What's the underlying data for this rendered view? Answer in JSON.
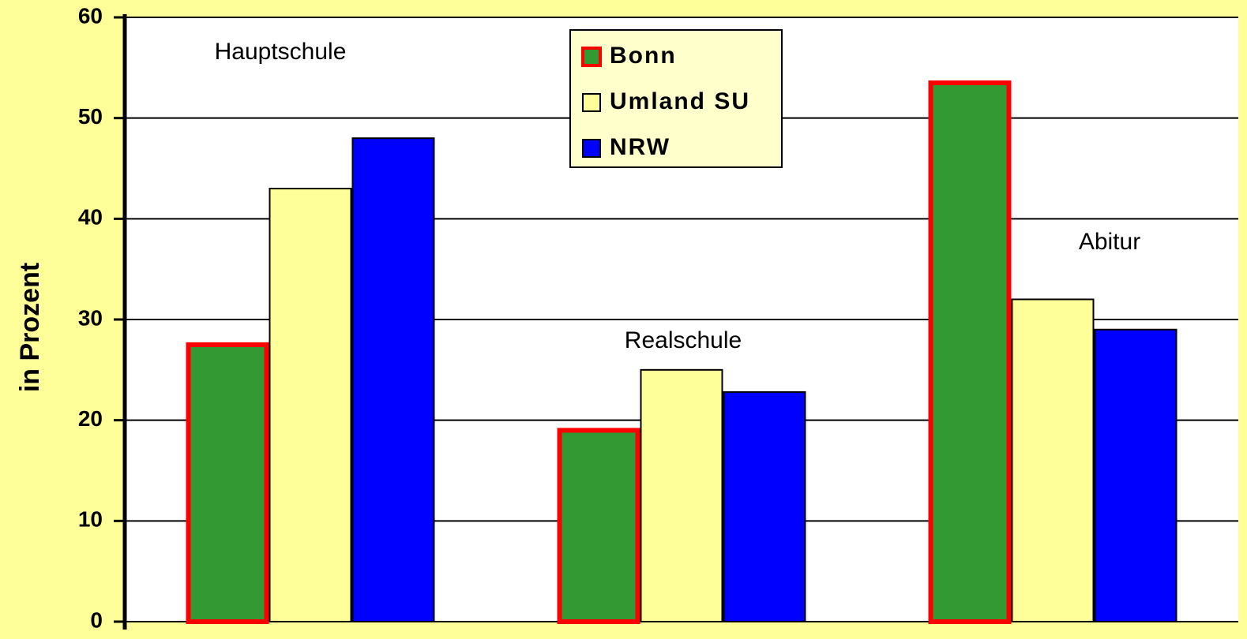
{
  "chart_data": {
    "type": "bar",
    "categories": [
      "Hauptschule",
      "Realschule",
      "Abitur"
    ],
    "series": [
      {
        "name": "Bonn",
        "color": "#339933",
        "edgecolor": "#ff0000",
        "values": [
          27.5,
          19,
          53.5
        ]
      },
      {
        "name": "Umland SU",
        "color": "#ffff99",
        "edgecolor": "#000000",
        "values": [
          43,
          25,
          32
        ]
      },
      {
        "name": "NRW",
        "color": "#0000ff",
        "edgecolor": "#000000",
        "values": [
          48,
          22.8,
          29
        ]
      }
    ],
    "ylabel": "in Prozent",
    "ylim": [
      0,
      60
    ],
    "yticks": [
      0,
      10,
      20,
      30,
      40,
      50,
      60
    ],
    "grid": true,
    "legend": "upper center"
  }
}
